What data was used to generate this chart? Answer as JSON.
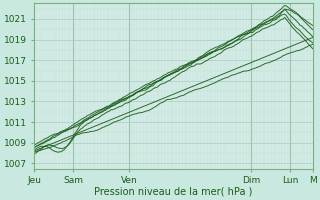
{
  "xlabel": "Pression niveau de la mer( hPa )",
  "ylim": [
    1006.5,
    1022.5
  ],
  "yticks": [
    1007,
    1009,
    1011,
    1013,
    1015,
    1017,
    1019,
    1021
  ],
  "bg_color": "#c8e8e0",
  "plot_bg_color": "#d4ece6",
  "grid_color_major": "#a8ccc6",
  "grid_color_minor": "#bcdbd5",
  "line_color": "#1a5c1a",
  "n_points": 200,
  "font_size": 6.5,
  "day_positions": [
    0,
    28,
    68,
    156,
    184,
    200
  ],
  "day_labels": [
    "Jeu",
    "Sam",
    "Ven",
    "Dim",
    "Lun",
    "M"
  ],
  "vline_positions": [
    28,
    68,
    156,
    184
  ]
}
